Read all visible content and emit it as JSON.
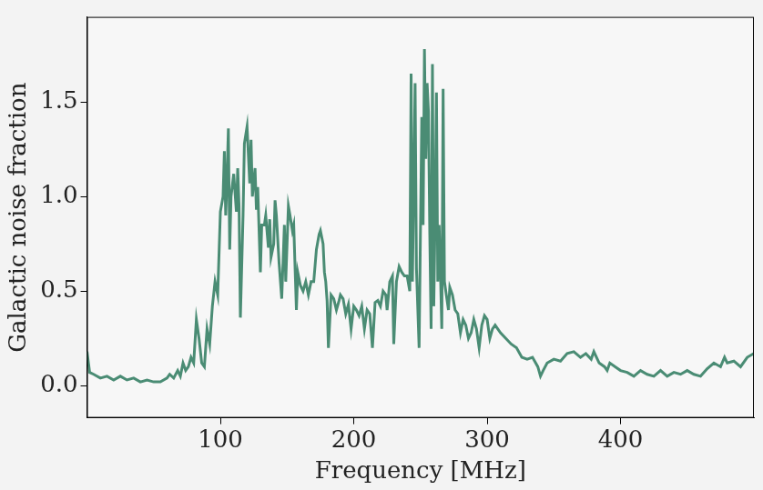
{
  "chart_data": {
    "type": "line",
    "x_label": "Frequency [MHz]",
    "y_label": "Galactic noise fraction",
    "x": [
      0,
      2,
      5,
      10,
      15,
      20,
      25,
      30,
      35,
      40,
      45,
      50,
      55,
      60,
      62,
      65,
      68,
      70,
      72,
      74,
      76,
      78,
      80,
      82,
      84,
      86,
      88,
      90,
      92,
      94,
      96,
      98,
      100,
      102,
      103,
      104,
      105,
      106,
      107,
      108,
      110,
      112,
      113,
      114,
      115,
      117,
      118,
      120,
      122,
      123,
      124,
      126,
      127,
      128,
      130,
      131,
      133,
      134,
      136,
      137,
      138,
      140,
      141,
      142,
      144,
      146,
      148,
      149,
      151,
      152,
      154,
      155,
      157,
      158,
      160,
      162,
      164,
      166,
      168,
      170,
      172,
      174,
      175,
      177,
      178,
      179,
      180,
      181,
      183,
      185,
      187,
      189,
      190,
      192,
      194,
      196,
      198,
      200,
      202,
      204,
      206,
      208,
      210,
      212,
      214,
      216,
      218,
      220,
      222,
      224,
      225,
      227,
      229,
      230,
      232,
      234,
      236,
      238,
      240,
      242,
      243,
      244,
      246,
      247,
      249,
      251,
      252,
      253,
      254,
      255,
      256,
      257,
      258,
      259,
      260,
      261,
      262,
      263,
      264,
      265,
      266,
      267,
      268,
      270,
      271,
      272,
      274,
      276,
      278,
      280,
      282,
      284,
      286,
      288,
      290,
      292,
      294,
      296,
      298,
      300,
      302,
      304,
      306,
      308,
      310,
      314,
      318,
      322,
      326,
      330,
      334,
      338,
      340,
      342,
      345,
      350,
      355,
      360,
      365,
      370,
      374,
      378,
      380,
      384,
      388,
      390,
      392,
      396,
      400,
      405,
      410,
      415,
      420,
      425,
      430,
      435,
      440,
      445,
      450,
      455,
      460,
      465,
      470,
      475,
      478,
      480,
      485,
      490,
      495,
      500
    ],
    "values": [
      0.18,
      0.07,
      0.06,
      0.04,
      0.05,
      0.03,
      0.05,
      0.03,
      0.04,
      0.02,
      0.03,
      0.02,
      0.02,
      0.04,
      0.06,
      0.04,
      0.08,
      0.05,
      0.12,
      0.08,
      0.1,
      0.15,
      0.12,
      0.35,
      0.25,
      0.12,
      0.1,
      0.3,
      0.22,
      0.42,
      0.55,
      0.48,
      0.92,
      1.0,
      1.24,
      0.9,
      1.1,
      1.36,
      0.72,
      1.0,
      1.12,
      0.92,
      1.15,
      0.95,
      0.36,
      0.9,
      1.28,
      1.37,
      1.07,
      1.3,
      1.0,
      1.15,
      0.93,
      1.05,
      0.6,
      0.85,
      0.85,
      0.9,
      0.73,
      0.88,
      0.68,
      0.75,
      0.98,
      0.9,
      0.65,
      0.46,
      0.85,
      0.55,
      0.95,
      0.91,
      0.82,
      0.85,
      0.4,
      0.6,
      0.53,
      0.5,
      0.55,
      0.48,
      0.55,
      0.55,
      0.72,
      0.8,
      0.82,
      0.75,
      0.6,
      0.55,
      0.45,
      0.2,
      0.48,
      0.46,
      0.4,
      0.45,
      0.48,
      0.46,
      0.38,
      0.43,
      0.3,
      0.42,
      0.4,
      0.37,
      0.42,
      0.3,
      0.4,
      0.38,
      0.2,
      0.44,
      0.45,
      0.42,
      0.5,
      0.48,
      0.4,
      0.55,
      0.58,
      0.22,
      0.55,
      0.63,
      0.6,
      0.58,
      0.58,
      0.5,
      1.65,
      0.55,
      1.6,
      0.62,
      0.2,
      1.42,
      0.85,
      1.78,
      1.2,
      1.6,
      1.45,
      0.8,
      0.3,
      1.7,
      0.42,
      0.9,
      1.55,
      0.55,
      0.85,
      0.6,
      0.3,
      1.57,
      0.55,
      0.45,
      0.4,
      0.52,
      0.48,
      0.4,
      0.38,
      0.28,
      0.35,
      0.32,
      0.25,
      0.28,
      0.35,
      0.3,
      0.2,
      0.32,
      0.37,
      0.35,
      0.25,
      0.3,
      0.32,
      0.3,
      0.28,
      0.25,
      0.22,
      0.2,
      0.15,
      0.14,
      0.15,
      0.1,
      0.05,
      0.08,
      0.12,
      0.14,
      0.13,
      0.17,
      0.18,
      0.15,
      0.17,
      0.14,
      0.18,
      0.12,
      0.1,
      0.08,
      0.12,
      0.1,
      0.08,
      0.07,
      0.05,
      0.08,
      0.06,
      0.05,
      0.08,
      0.05,
      0.07,
      0.06,
      0.08,
      0.06,
      0.05,
      0.09,
      0.12,
      0.1,
      0.15,
      0.12,
      0.13,
      0.1,
      0.15,
      0.17
    ],
    "color": "#4a8c74",
    "xlim": [
      0,
      500
    ],
    "xticks": [
      100,
      200,
      300,
      400
    ],
    "ylim": [
      -0.17,
      1.95
    ],
    "yticks": [
      {
        "value": 0,
        "label": "0.0"
      },
      0.5,
      {
        "value": 1,
        "label": "1.0"
      },
      1.5
    ],
    "grid": false
  }
}
